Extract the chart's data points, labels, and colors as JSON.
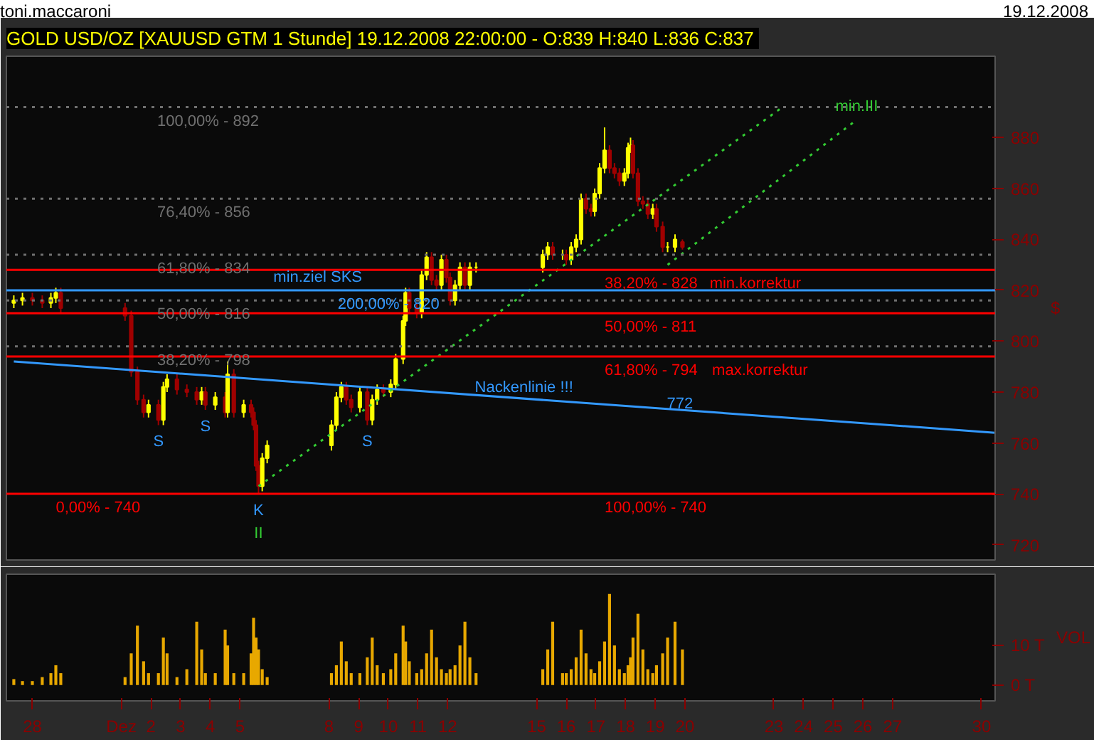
{
  "chart_data": [
    {
      "type": "candlestick",
      "title": "GOLD USD/OZ [XAUUSD GTM  1 Stunde] 19.12.2008 22:00:00 - O:839 H:840 L:836 C:837",
      "ylabel": "$",
      "series": [
        {
          "type": "candlestick",
          "colors": [
            "#ffff00",
            "#ffff00",
            "#a00000",
            "#a00000",
            "#ffff00",
            "#ffff00",
            "#a00000",
            "#a00000",
            "#a00000",
            "#a00000",
            "#a00000",
            "#ffff00",
            "#a00000",
            "#ffff00",
            "#ffff00",
            "#a00000",
            "#a00000",
            "#a00000",
            "#ffff00",
            "#a00000",
            "#ffff00",
            "#a00000",
            "#ffff00",
            "#a00000",
            "#ffff00",
            "#a00000",
            "#a00000",
            "#a00000",
            "#a00000",
            "#ffff00",
            "#ffff00",
            "#ffff00",
            "#ffff00",
            "#ffff00",
            "#a00000",
            "#a00000",
            "#ffff00",
            "#a00000",
            "#ffff00",
            "#ffff00",
            "#a00000",
            "#ffff00",
            "#ffff00",
            "#ffff00",
            "#ffff00",
            "#a00000",
            "#a00000",
            "#ffff00",
            "#ffff00",
            "#a00000",
            "#a00000",
            "#ffff00",
            "#a00000",
            "#a00000",
            "#ffff00",
            "#ffff00",
            "#a00000",
            "#ffff00",
            "#ffff00",
            "#ffff00",
            "#ffff00",
            "#a00000",
            "#ffff00",
            "#a00000",
            "#ffff00",
            "#ffff00",
            "#ffff00",
            "#a00000",
            "#a00000",
            "#ffff00",
            "#ffff00",
            "#ffff00",
            "#a00000",
            "#a00000",
            "#a00000",
            "#ffff00",
            "#ffff00",
            "#ffff00",
            "#a00000",
            "#a00000",
            "#a00000",
            "#a00000",
            "#ffff00",
            "#a00000",
            "#a00000",
            "#ffff00",
            "#ffff00",
            "#a00000"
          ],
          "x": [
            "2008-11-27T09:00",
            "2008-11-27T16:00",
            "2008-11-28T00:00",
            "2008-11-28T08:00",
            "2008-11-28T15:00",
            "2008-11-28T19:00",
            "2008-11-28T23:00",
            "2008-12-01T03:00",
            "2008-12-01T08:00",
            "2008-12-01T13:00",
            "2008-12-01T18:00",
            "2008-12-01T22:00",
            "2008-12-02T06:00",
            "2008-12-02T10:00",
            "2008-12-02T13:00",
            "2008-12-02T21:00",
            "2008-12-03T05:00",
            "2008-12-03T13:00",
            "2008-12-03T17:00",
            "2008-12-03T20:00",
            "2008-12-04T04:00",
            "2008-12-04T12:00",
            "2008-12-04T14:00",
            "2008-12-04T19:00",
            "2008-12-05T03:00",
            "2008-12-05T09:00",
            "2008-12-05T11:00",
            "2008-12-05T13:00",
            "2008-12-05T15:00",
            "2008-12-05T18:00",
            "2008-12-05T22:00",
            "2008-12-08T02:00",
            "2008-12-08T06:00",
            "2008-12-08T10:00",
            "2008-12-08T14:00",
            "2008-12-08T18:00",
            "2008-12-09T01:00",
            "2008-12-09T07:00",
            "2008-12-09T11:00",
            "2008-12-09T15:00",
            "2008-12-09T20:00",
            "2008-12-10T02:00",
            "2008-12-10T06:00",
            "2008-12-10T12:00",
            "2008-12-10T14:00",
            "2008-12-10T17:00",
            "2008-12-10T23:00",
            "2008-12-11T03:00",
            "2008-12-11T07:00",
            "2008-12-11T11:00",
            "2008-12-11T15:00",
            "2008-12-11T19:00",
            "2008-12-11T23:00",
            "2008-12-12T02:00",
            "2008-12-12T06:00",
            "2008-12-12T10:00",
            "2008-12-12T14:00",
            "2008-12-12T18:00",
            "2008-12-12T23:00",
            "2008-12-15T05:00",
            "2008-12-15T09:00",
            "2008-12-15T13:00",
            "2008-12-15T21:00",
            "2008-12-16T00:00",
            "2008-12-16T04:00",
            "2008-12-16T08:00",
            "2008-12-16T12:00",
            "2008-12-16T16:00",
            "2008-12-16T20:00",
            "2008-12-16T23:00",
            "2008-12-17T03:00",
            "2008-12-17T07:00",
            "2008-12-17T11:00",
            "2008-12-17T15:00",
            "2008-12-17T19:00",
            "2008-12-17T23:00",
            "2008-12-18T02:00",
            "2008-12-18T04:00",
            "2008-12-18T06:00",
            "2008-12-18T10:00",
            "2008-12-18T14:00",
            "2008-12-18T18:00",
            "2008-12-18T22:00",
            "2008-12-19T01:00",
            "2008-12-19T06:00",
            "2008-12-19T10:00",
            "2008-12-19T16:00",
            "2008-12-19T22:00"
          ],
          "ohlc": [
            [
              815,
              818,
              813,
              816
            ],
            [
              816,
              819,
              814,
              817
            ],
            [
              817,
              819,
              814,
              816
            ],
            [
              816,
              818,
              813,
              815
            ],
            [
              815,
              819,
              813,
              817
            ],
            [
              817,
              821,
              815,
              819
            ],
            [
              819,
              821,
              811,
              813
            ],
            [
              813,
              815,
              808,
              810
            ],
            [
              810,
              812,
              786,
              788
            ],
            [
              788,
              790,
              775,
              777
            ],
            [
              777,
              779,
              770,
              772
            ],
            [
              772,
              777,
              770,
              775
            ],
            [
              775,
              777,
              767,
              769
            ],
            [
              769,
              784,
              767,
              782
            ],
            [
              782,
              787,
              780,
              785
            ],
            [
              785,
              787,
              779,
              781
            ],
            [
              781,
              783,
              778,
              780
            ],
            [
              780,
              782,
              775,
              777
            ],
            [
              777,
              782,
              775,
              780
            ],
            [
              780,
              782,
              773,
              775
            ],
            [
              775,
              780,
              773,
              778
            ],
            [
              778,
              780,
              770,
              772
            ],
            [
              772,
              792,
              770,
              787
            ],
            [
              787,
              789,
              770,
              772
            ],
            [
              772,
              777,
              770,
              775
            ],
            [
              775,
              777,
              770,
              772
            ],
            [
              772,
              774,
              765,
              767
            ],
            [
              767,
              769,
              749,
              751
            ],
            [
              751,
              753,
              740,
              743
            ],
            [
              743,
              756,
              741,
              754
            ],
            [
              754,
              761,
              752,
              759
            ],
            [
              759,
              769,
              757,
              767
            ],
            [
              767,
              780,
              765,
              778
            ],
            [
              778,
              784,
              776,
              782
            ],
            [
              782,
              784,
              775,
              777
            ],
            [
              777,
              779,
              772,
              774
            ],
            [
              774,
              782,
              772,
              780
            ],
            [
              780,
              782,
              767,
              769
            ],
            [
              769,
              779,
              767,
              777
            ],
            [
              777,
              783,
              775,
              781
            ],
            [
              781,
              783,
              778,
              780
            ],
            [
              780,
              785,
              778,
              783
            ],
            [
              783,
              795,
              781,
              793
            ],
            [
              793,
              810,
              791,
              808
            ],
            [
              808,
              821,
              806,
              819
            ],
            [
              819,
              821,
              811,
              813
            ],
            [
              813,
              815,
              809,
              811
            ],
            [
              811,
              828,
              809,
              826
            ],
            [
              826,
              835,
              824,
              833
            ],
            [
              833,
              835,
              822,
              824
            ],
            [
              824,
              826,
              820,
              822
            ],
            [
              822,
              834,
              820,
              832
            ],
            [
              832,
              834,
              823,
              825
            ],
            [
              825,
              827,
              814,
              816
            ],
            [
              816,
              824,
              814,
              822
            ],
            [
              822,
              831,
              820,
              829
            ],
            [
              829,
              831,
              820,
              822
            ],
            [
              822,
              831,
              820,
              829
            ],
            [
              829,
              831,
              827,
              829
            ],
            [
              829,
              836,
              827,
              834
            ],
            [
              834,
              839,
              832,
              837
            ],
            [
              837,
              839,
              832,
              834
            ],
            [
              834,
              836,
              832,
              834
            ],
            [
              834,
              836,
              830,
              832
            ],
            [
              832,
              839,
              830,
              837
            ],
            [
              837,
              842,
              835,
              840
            ],
            [
              840,
              858,
              838,
              856
            ],
            [
              856,
              858,
              850,
              852
            ],
            [
              852,
              854,
              849,
              851
            ],
            [
              851,
              860,
              849,
              858
            ],
            [
              858,
              870,
              856,
              868
            ],
            [
              868,
              884,
              866,
              875
            ],
            [
              875,
              877,
              866,
              868
            ],
            [
              868,
              870,
              864,
              866
            ],
            [
              866,
              868,
              861,
              863
            ],
            [
              863,
              868,
              861,
              866
            ],
            [
              866,
              878,
              864,
              876
            ],
            [
              876,
              880,
              874,
              877
            ],
            [
              877,
              879,
              864,
              866
            ],
            [
              866,
              868,
              853,
              855
            ],
            [
              855,
              857,
              852,
              854
            ],
            [
              854,
              856,
              848,
              850
            ],
            [
              850,
              854,
              848,
              852
            ],
            [
              852,
              854,
              843,
              845
            ],
            [
              845,
              847,
              835,
              837
            ],
            [
              837,
              839,
              835,
              837
            ],
            [
              837,
              842,
              835,
              840
            ],
            [
              839,
              840,
              836,
              837
            ]
          ]
        },
        {
          "type": "line",
          "name": "Nackenlinie !!!",
          "color": "#3399ff",
          "line_style": "solid",
          "x": [
            "2008-11-27T09:00",
            "2008-12-30T11:00"
          ],
          "values": [
            792,
            764
          ]
        },
        {
          "type": "line",
          "color": "#33cc33",
          "line_style": "dotted",
          "x": [
            "2008-12-05T15:00",
            "2008-12-23T07:00"
          ],
          "values": [
            743,
            892
          ]
        },
        {
          "type": "line",
          "color": "#33cc33",
          "line_style": "dotted",
          "x": [
            "2008-12-19T10:00",
            "2008-12-25T19:00"
          ],
          "values": [
            830,
            887
          ]
        }
      ],
      "ref_lines": [
        {
          "axis": "y",
          "value": 892,
          "color": "#707070",
          "line_style": "dotted"
        },
        {
          "axis": "y",
          "value": 856,
          "color": "#707070",
          "line_style": "dotted"
        },
        {
          "axis": "y",
          "value": 834,
          "color": "#707070",
          "line_style": "dotted"
        },
        {
          "axis": "y",
          "value": 816,
          "color": "#707070",
          "line_style": "dotted"
        },
        {
          "axis": "y",
          "value": 798,
          "color": "#707070",
          "line_style": "dotted"
        },
        {
          "axis": "y",
          "value": 828,
          "color": "#ff0000",
          "line_style": "solid"
        },
        {
          "axis": "y",
          "value": 811,
          "color": "#ff0000",
          "line_style": "solid"
        },
        {
          "axis": "y",
          "value": 794,
          "color": "#ff0000",
          "line_style": "solid"
        },
        {
          "axis": "y",
          "value": 740,
          "color": "#ff0000",
          "line_style": "solid"
        },
        {
          "axis": "y",
          "value": 820,
          "color": "#3399ff",
          "line_style": "solid",
          "label": "min.ziel SKS"
        }
      ],
      "annotations": [
        "toni.maccaroni",
        "19.12.2008",
        {
          "text": "100,00% - 892",
          "x": "2008-12-02T05:00",
          "y": 892
        },
        {
          "text": "76,40% - 856",
          "x": "2008-12-02T05:00",
          "y": 856
        },
        {
          "text": "61,80% - 834",
          "x": "2008-12-02T05:00",
          "y": 834
        },
        {
          "text": "50,00% - 816",
          "x": "2008-12-02T05:00",
          "y": 816
        },
        {
          "text": "38,20% - 798",
          "x": "2008-12-02T05:00",
          "y": 798
        },
        {
          "text": "0,00% - 740",
          "x": "2008-11-28T19:00",
          "y": 740
        },
        {
          "text": "38,20% - 828",
          "x": "2008-12-17T07:00",
          "y": 828
        },
        {
          "text": "min.korrektur",
          "x": "2008-12-20T20:00",
          "y": 828
        },
        {
          "text": "50,00% - 811",
          "x": "2008-12-17T07:00",
          "y": 811
        },
        {
          "text": "61,80% - 794",
          "x": "2008-12-17T07:00",
          "y": 794
        },
        {
          "text": "max.korrektur",
          "x": "2008-12-20T22:00",
          "y": 794
        },
        {
          "text": "100,00% - 740",
          "x": "2008-12-17T07:00",
          "y": 740
        },
        {
          "text": "200,00% - 820",
          "x": "2008-12-08T07:00",
          "y": 820
        },
        {
          "text": "772",
          "x": "2008-12-19T20:00",
          "y": 772
        },
        {
          "text": "S",
          "x": "2008-12-02T06:00",
          "y": 767
        },
        {
          "text": "S",
          "x": "2008-12-03T20:00",
          "y": 773
        },
        {
          "text": "S",
          "x": "2008-12-09T07:00",
          "y": 767
        },
        {
          "text": "K",
          "x": "2008-12-05T15:00",
          "y": 740
        },
        {
          "text": "II",
          "x": "2008-12-05T15:00",
          "y": 740
        },
        {
          "text": "min.III",
          "x": "2008-12-25T19:00",
          "y": 887
        }
      ],
      "xlim": [
        "2008-11-27T03:00",
        "2008-12-30T11:00"
      ],
      "ylim": [
        714,
        912
      ],
      "yticks": [
        720,
        740,
        760,
        780,
        800,
        820,
        840,
        860,
        880
      ],
      "tick_labels": "y"
    },
    {
      "type": "bar",
      "ylabel": "VOL",
      "color": "#e8a800",
      "x": [
        "2008-11-27T09:00",
        "2008-11-27T16:00",
        "2008-11-28T00:00",
        "2008-11-28T08:00",
        "2008-11-28T15:00",
        "2008-11-28T19:00",
        "2008-11-28T23:00",
        "2008-12-01T03:00",
        "2008-12-01T08:00",
        "2008-12-01T13:00",
        "2008-12-01T18:00",
        "2008-12-01T22:00",
        "2008-12-02T06:00",
        "2008-12-02T10:00",
        "2008-12-02T13:00",
        "2008-12-02T21:00",
        "2008-12-03T05:00",
        "2008-12-03T13:00",
        "2008-12-03T17:00",
        "2008-12-03T20:00",
        "2008-12-04T04:00",
        "2008-12-04T12:00",
        "2008-12-04T14:00",
        "2008-12-04T19:00",
        "2008-12-05T03:00",
        "2008-12-05T09:00",
        "2008-12-05T11:00",
        "2008-12-05T13:00",
        "2008-12-05T15:00",
        "2008-12-05T18:00",
        "2008-12-05T22:00",
        "2008-12-08T02:00",
        "2008-12-08T06:00",
        "2008-12-08T10:00",
        "2008-12-08T14:00",
        "2008-12-08T18:00",
        "2008-12-09T01:00",
        "2008-12-09T07:00",
        "2008-12-09T11:00",
        "2008-12-09T15:00",
        "2008-12-09T20:00",
        "2008-12-10T02:00",
        "2008-12-10T06:00",
        "2008-12-10T12:00",
        "2008-12-10T14:00",
        "2008-12-10T17:00",
        "2008-12-10T23:00",
        "2008-12-11T03:00",
        "2008-12-11T07:00",
        "2008-12-11T11:00",
        "2008-12-11T15:00",
        "2008-12-11T19:00",
        "2008-12-11T23:00",
        "2008-12-12T02:00",
        "2008-12-12T06:00",
        "2008-12-12T10:00",
        "2008-12-12T14:00",
        "2008-12-12T18:00",
        "2008-12-12T23:00",
        "2008-12-15T05:00",
        "2008-12-15T09:00",
        "2008-12-15T13:00",
        "2008-12-15T21:00",
        "2008-12-16T00:00",
        "2008-12-16T04:00",
        "2008-12-16T08:00",
        "2008-12-16T12:00",
        "2008-12-16T16:00",
        "2008-12-16T20:00",
        "2008-12-16T23:00",
        "2008-12-17T03:00",
        "2008-12-17T07:00",
        "2008-12-17T11:00",
        "2008-12-17T15:00",
        "2008-12-17T19:00",
        "2008-12-17T23:00",
        "2008-12-18T02:00",
        "2008-12-18T04:00",
        "2008-12-18T06:00",
        "2008-12-18T10:00",
        "2008-12-18T14:00",
        "2008-12-18T18:00",
        "2008-12-18T22:00",
        "2008-12-19T01:00",
        "2008-12-19T06:00",
        "2008-12-19T10:00",
        "2008-12-19T16:00",
        "2008-12-19T22:00"
      ],
      "values": [
        1.5,
        1,
        1,
        2,
        3,
        5,
        3,
        2,
        8,
        15,
        6,
        3,
        3,
        12,
        8,
        2,
        4,
        16,
        9,
        3,
        3,
        14,
        10,
        3,
        3,
        8,
        17,
        12,
        9,
        4,
        2,
        3,
        5,
        11,
        6,
        3,
        3,
        7,
        12,
        5,
        3,
        4,
        8,
        15,
        11,
        6,
        3,
        4,
        8,
        14,
        7,
        4,
        3,
        4,
        5,
        10,
        16,
        7,
        3,
        4,
        9,
        16,
        3,
        3,
        4,
        7,
        14,
        8,
        4,
        3,
        6,
        11,
        23,
        10,
        4,
        3,
        5,
        7,
        12,
        18,
        9,
        4,
        3,
        5,
        8,
        12,
        16,
        9
      ],
      "xlim": [
        "2008-11-27T03:00",
        "2008-12-30T11:00"
      ],
      "ylim": [
        -4,
        28
      ],
      "xticks": [
        {
          "value": "2008-11-28",
          "label": "28"
        },
        {
          "value": "2008-12-01",
          "label": "Dez"
        },
        {
          "value": "2008-12-02",
          "label": "2"
        },
        {
          "value": "2008-12-03",
          "label": "3"
        },
        {
          "value": "2008-12-04",
          "label": "4"
        },
        {
          "value": "2008-12-05",
          "label": "5"
        },
        {
          "value": "2008-12-08",
          "label": "8"
        },
        {
          "value": "2008-12-09",
          "label": "9"
        },
        {
          "value": "2008-12-10",
          "label": "10"
        },
        {
          "value": "2008-12-11",
          "label": "11"
        },
        {
          "value": "2008-12-12",
          "label": "12"
        },
        {
          "value": "2008-12-15",
          "label": "15"
        },
        {
          "value": "2008-12-16",
          "label": "16"
        },
        {
          "value": "2008-12-17",
          "label": "17"
        },
        {
          "value": "2008-12-18",
          "label": "18"
        },
        {
          "value": "2008-12-19",
          "label": "19"
        },
        {
          "value": "2008-12-20",
          "label": "20"
        },
        {
          "value": "2008-12-23",
          "label": "23"
        },
        {
          "value": "2008-12-24",
          "label": "24"
        },
        {
          "value": "2008-12-25",
          "label": "25"
        },
        {
          "value": "2008-12-26",
          "label": "26"
        },
        {
          "value": "2008-12-27",
          "label": "27"
        },
        {
          "value": "2008-12-30",
          "label": "30"
        }
      ],
      "yticks": [
        {
          "value": 0,
          "label": "0 T"
        },
        {
          "value": 10,
          "label": "10 T"
        }
      ]
    }
  ]
}
